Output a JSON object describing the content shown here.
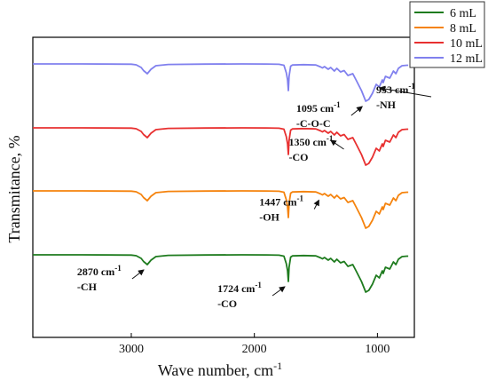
{
  "chart_data": {
    "type": "line",
    "title": "",
    "xlabel": "Wave number, cm",
    "xlabel_superscript": "-1",
    "ylabel": "Transmitance, %",
    "xlim": [
      3800,
      700
    ],
    "x_reversed": true,
    "xticks": [
      3000,
      2000,
      1000
    ],
    "yticks": [],
    "grid": false,
    "legend_position": "top-right",
    "series": [
      {
        "name": "6 mL",
        "color": "#1e7b1e",
        "offset": 0,
        "x": [
          3800,
          3400,
          3000,
          2960,
          2920,
          2900,
          2870,
          2840,
          2800,
          2700,
          2400,
          2100,
          1900,
          1800,
          1760,
          1740,
          1730,
          1724,
          1718,
          1705,
          1690,
          1600,
          1500,
          1460,
          1447,
          1430,
          1400,
          1380,
          1350,
          1330,
          1300,
          1270,
          1240,
          1200,
          1170,
          1130,
          1095,
          1070,
          1040,
          1010,
          985,
          960,
          953,
          935,
          900,
          870,
          850,
          830,
          800,
          760,
          750
        ],
        "y": [
          0,
          0,
          -0.3,
          -1.0,
          -4.0,
          -7.5,
          -11.0,
          -6.0,
          -2.0,
          -0.6,
          -0.2,
          0,
          -0.1,
          -0.4,
          -1.5,
          -10.0,
          -18.0,
          -30.0,
          -14.0,
          -2.5,
          -1.2,
          -0.8,
          -1.2,
          -3.5,
          -4.5,
          -3.0,
          -6.0,
          -4.0,
          -8.0,
          -5.0,
          -9.0,
          -7.5,
          -13.0,
          -11.0,
          -19.0,
          -30.0,
          -42.0,
          -40.0,
          -33.0,
          -23.0,
          -26.0,
          -18.0,
          -21.0,
          -14.0,
          -16.0,
          -8.0,
          -11.0,
          -5.0,
          -2.0,
          -1.5,
          -1.5
        ]
      },
      {
        "name": "8 mL",
        "color": "#f5830d",
        "offset": 72,
        "x": [
          3800,
          3400,
          3000,
          2960,
          2920,
          2900,
          2870,
          2840,
          2800,
          2700,
          2400,
          2100,
          1900,
          1800,
          1760,
          1740,
          1730,
          1724,
          1718,
          1705,
          1690,
          1600,
          1500,
          1460,
          1447,
          1430,
          1400,
          1380,
          1350,
          1330,
          1300,
          1270,
          1240,
          1200,
          1170,
          1130,
          1095,
          1070,
          1040,
          1010,
          985,
          960,
          953,
          935,
          900,
          870,
          850,
          830,
          800,
          760,
          750
        ],
        "y": [
          0,
          0,
          -0.3,
          -1.0,
          -4.0,
          -7.5,
          -11.0,
          -6.0,
          -2.0,
          -0.6,
          -0.2,
          0,
          -0.1,
          -0.4,
          -1.5,
          -10.0,
          -18.0,
          -30.0,
          -14.0,
          -2.5,
          -1.2,
          -0.8,
          -1.2,
          -3.5,
          -4.5,
          -3.0,
          -6.0,
          -4.0,
          -8.0,
          -5.0,
          -9.0,
          -7.5,
          -13.0,
          -11.0,
          -19.0,
          -30.0,
          -42.0,
          -40.0,
          -33.0,
          -23.0,
          -26.0,
          -18.0,
          -21.0,
          -14.0,
          -16.0,
          -8.0,
          -11.0,
          -5.0,
          -2.0,
          -1.5,
          -1.5
        ]
      },
      {
        "name": "10 mL",
        "color": "#e83030",
        "offset": 143,
        "x": [
          3800,
          3400,
          3000,
          2960,
          2920,
          2900,
          2870,
          2840,
          2800,
          2700,
          2400,
          2100,
          1900,
          1800,
          1760,
          1740,
          1730,
          1724,
          1718,
          1705,
          1690,
          1600,
          1500,
          1460,
          1447,
          1430,
          1400,
          1380,
          1350,
          1330,
          1300,
          1270,
          1240,
          1200,
          1170,
          1130,
          1095,
          1070,
          1040,
          1010,
          985,
          960,
          953,
          935,
          900,
          870,
          850,
          830,
          800,
          760,
          750
        ],
        "y": [
          0,
          0,
          -0.3,
          -1.0,
          -4.0,
          -7.5,
          -11.0,
          -6.0,
          -2.0,
          -0.6,
          -0.2,
          0,
          -0.1,
          -0.4,
          -1.5,
          -10.0,
          -18.0,
          -30.0,
          -14.0,
          -2.5,
          -1.2,
          -0.8,
          -1.2,
          -3.5,
          -4.5,
          -3.0,
          -6.0,
          -4.0,
          -8.0,
          -5.0,
          -9.0,
          -7.5,
          -13.0,
          -11.0,
          -19.0,
          -30.0,
          -42.0,
          -40.0,
          -33.0,
          -23.0,
          -26.0,
          -18.0,
          -21.0,
          -14.0,
          -16.0,
          -8.0,
          -11.0,
          -5.0,
          -2.0,
          -1.5,
          -1.5
        ]
      },
      {
        "name": "12 mL",
        "color": "#8080ee",
        "offset": 215,
        "x": [
          3800,
          3400,
          3000,
          2960,
          2920,
          2900,
          2870,
          2840,
          2800,
          2700,
          2400,
          2100,
          1900,
          1800,
          1760,
          1740,
          1730,
          1724,
          1718,
          1705,
          1690,
          1600,
          1500,
          1460,
          1447,
          1430,
          1400,
          1380,
          1350,
          1330,
          1300,
          1270,
          1240,
          1200,
          1170,
          1130,
          1095,
          1070,
          1040,
          1010,
          985,
          960,
          953,
          935,
          900,
          870,
          850,
          830,
          800,
          760,
          750
        ],
        "y": [
          0,
          0,
          -0.3,
          -1.0,
          -4.0,
          -7.5,
          -11.0,
          -6.0,
          -2.0,
          -0.6,
          -0.2,
          0,
          -0.1,
          -0.4,
          -1.5,
          -10.0,
          -18.0,
          -30.0,
          -14.0,
          -2.5,
          -1.2,
          -0.8,
          -1.2,
          -3.5,
          -4.5,
          -3.0,
          -6.0,
          -4.0,
          -8.0,
          -5.0,
          -9.0,
          -7.5,
          -13.0,
          -11.0,
          -19.0,
          -30.0,
          -42.0,
          -40.0,
          -33.0,
          -23.0,
          -26.0,
          -18.0,
          -21.0,
          -14.0,
          -16.0,
          -8.0,
          -11.0,
          -5.0,
          -2.0,
          -1.5,
          -1.5
        ]
      }
    ],
    "annotations": [
      {
        "line1": "2870 cm",
        "sup": "-1",
        "line2": "-CH",
        "series": 0,
        "x": 2870,
        "text_x": 3440
      },
      {
        "line1": "1724 cm",
        "sup": "-1",
        "line2": "-CO",
        "series": 0,
        "x": 1724,
        "text_x": 2300
      },
      {
        "line1": "1447 cm",
        "sup": "-1",
        "line2": "-OH",
        "series": 1,
        "x": 1447,
        "text_x": 1960
      },
      {
        "line1": "1350 cm",
        "sup": "-1",
        "line2": "-CO",
        "series": 2,
        "x": 1350,
        "text_x": 1720
      },
      {
        "line1": "1095 cm",
        "sup": "-1",
        "line2": "-C-O-C",
        "series": 3,
        "x": 1095,
        "text_x": 1660
      },
      {
        "line1": "953 cm",
        "sup": "-1",
        "line2": "-NH",
        "series": 3,
        "x": 953,
        "text_x": 1010
      }
    ]
  }
}
